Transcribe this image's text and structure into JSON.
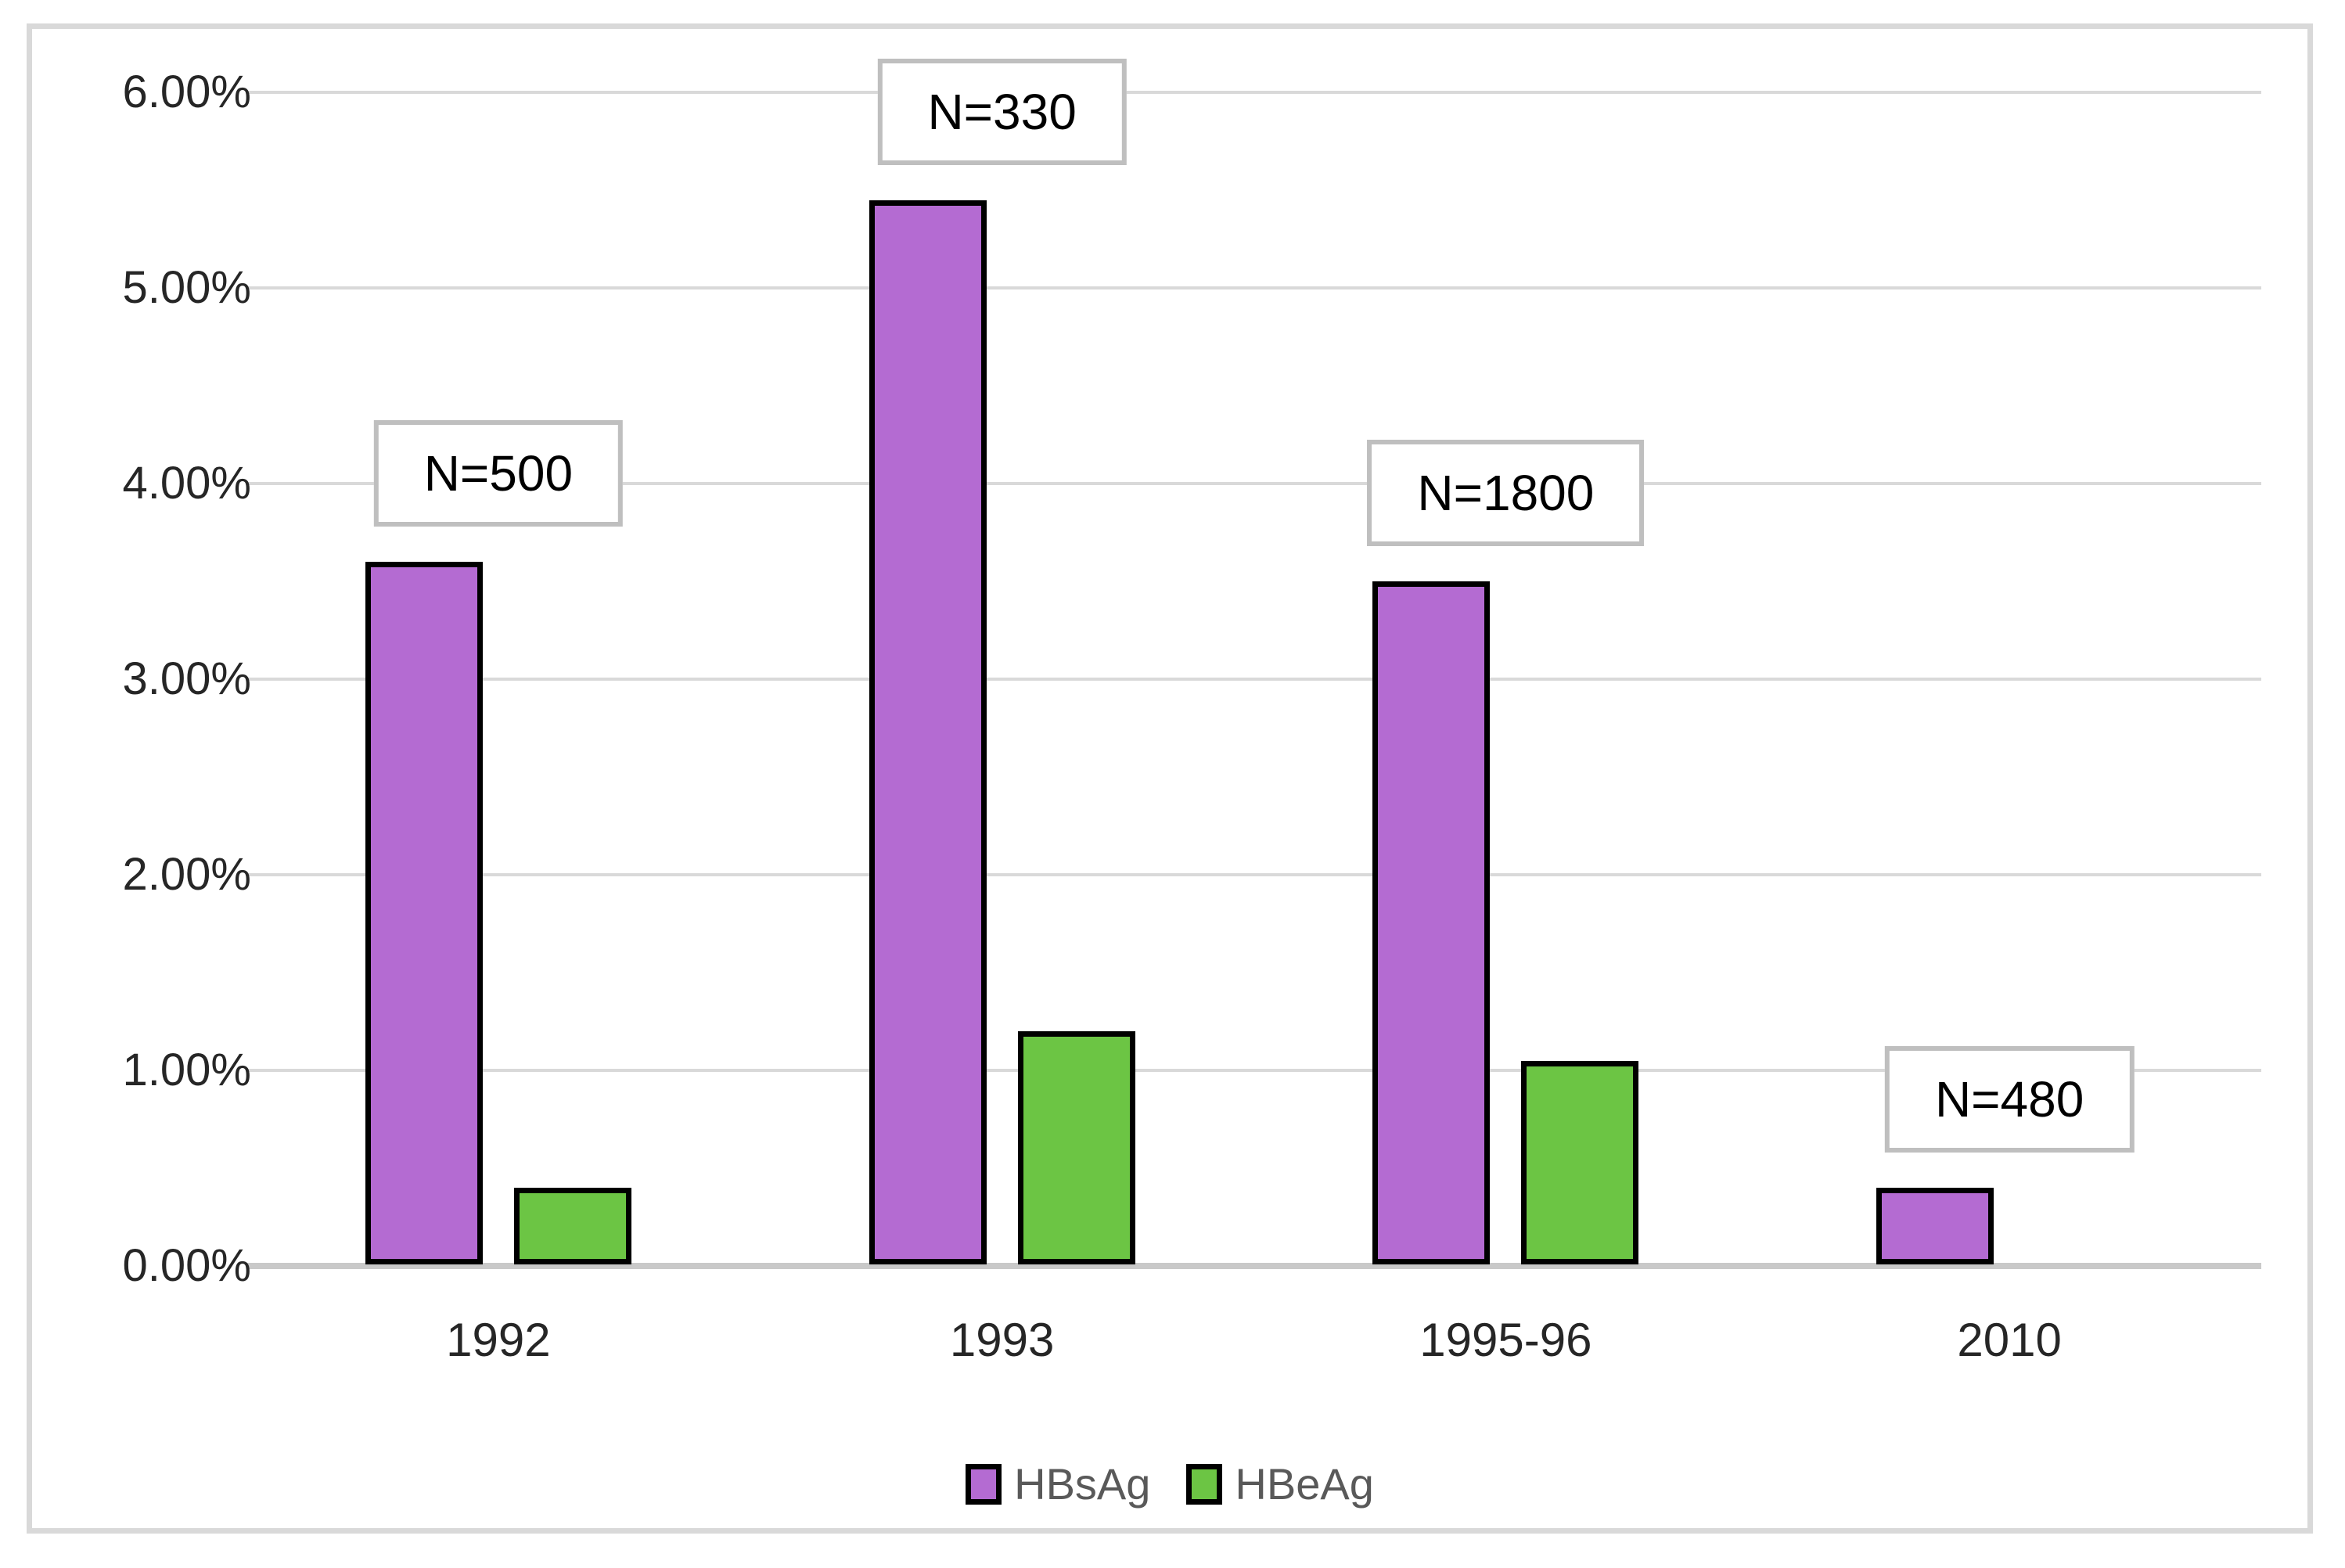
{
  "chart_data": {
    "type": "bar",
    "title": "",
    "categories": [
      "1992",
      "1993",
      "1995-96",
      "2010"
    ],
    "series": [
      {
        "name": "HBsAg",
        "color": "#B46BD2",
        "values": [
          3.6,
          5.45,
          3.5,
          0.4
        ]
      },
      {
        "name": "HBeAg",
        "color": "#6CC544",
        "values": [
          0.4,
          1.2,
          1.05,
          null
        ]
      }
    ],
    "annotations": [
      {
        "category": "1992",
        "label": "N=500"
      },
      {
        "category": "1993",
        "label": "N=330"
      },
      {
        "category": "1995-96",
        "label": "N=1800"
      },
      {
        "category": "2010",
        "label": "N=480"
      }
    ],
    "y_axis": {
      "tick_labels": [
        "6.00%",
        "5.00%",
        "4.00%",
        "3.00%",
        "2.00%",
        "1.00%",
        "0.00%"
      ],
      "min": 0,
      "max": 6,
      "unit": "%"
    },
    "xlabel": "",
    "ylabel": "",
    "grid": true,
    "legend_position": "bottom",
    "colors": {
      "bar_border": "#000000",
      "gridline": "#D9D9D9",
      "axis_line": "#C9C9C9",
      "chart_border": "#D9D9D9",
      "annotation_border": "#BFBFBF",
      "annotation_text": "#000000",
      "axis_text": "#262626",
      "legend_text": "#595959"
    }
  }
}
